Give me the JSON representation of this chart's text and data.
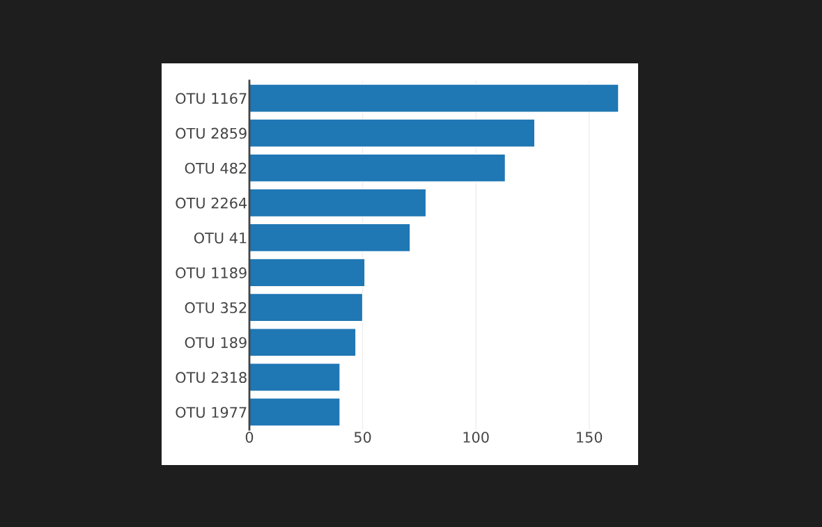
{
  "chart_data": {
    "type": "bar",
    "orientation": "horizontal",
    "categories": [
      "OTU 1167",
      "OTU 2859",
      "OTU 482",
      "OTU 2264",
      "OTU 41",
      "OTU 1189",
      "OTU 352",
      "OTU 189",
      "OTU 2318",
      "OTU 1977"
    ],
    "values": [
      163,
      126,
      113,
      78,
      71,
      51,
      50,
      47,
      40,
      40
    ],
    "color": "#1f77b4",
    "xlim": [
      0,
      171
    ],
    "xticks": [
      0,
      50,
      100,
      150
    ],
    "grid": "x"
  }
}
